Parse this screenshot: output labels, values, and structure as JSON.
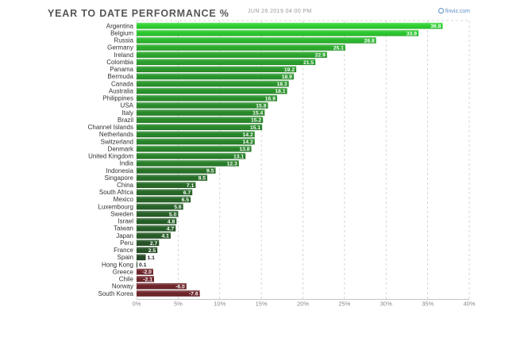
{
  "header": {
    "title": "YEAR TO DATE PERFORMANCE %",
    "timestamp": "JUN 26 2019 04:00 PM",
    "brand": "finviz.com",
    "brand_icon": "finviz-logo-icon"
  },
  "colors": {
    "positive_light": "#27d02a",
    "positive_dark": "#1e3a1e",
    "negative": "#6b1f24",
    "grid": "#cccccc",
    "label": "#333333",
    "tick": "#888888"
  },
  "chart_data": {
    "type": "bar",
    "orientation": "horizontal",
    "title": "YEAR TO DATE PERFORMANCE %",
    "categories": [
      "Argentina",
      "Belgium",
      "Russia",
      "Germany",
      "Ireland",
      "Colombia",
      "Panama",
      "Bermuda",
      "Canada",
      "Australia",
      "Philippines",
      "USA",
      "Italy",
      "Brazil",
      "Channel Islands",
      "Netherlands",
      "Switzerland",
      "Denmark",
      "United Kingdom",
      "India",
      "Indonesia",
      "Singapore",
      "China",
      "South Africa",
      "Mexico",
      "Luxembourg",
      "Sweden",
      "Israel",
      "Taiwan",
      "Japan",
      "Peru",
      "France",
      "Spain",
      "Hong Kong",
      "Greece",
      "Chile",
      "Norway",
      "South Korea"
    ],
    "values": [
      36.8,
      33.9,
      28.8,
      25.1,
      22.9,
      21.5,
      19.2,
      18.9,
      18.3,
      18.1,
      16.9,
      15.8,
      15.4,
      15.2,
      15.1,
      14.2,
      14.2,
      13.8,
      13.1,
      12.3,
      9.5,
      8.5,
      7.1,
      6.7,
      6.5,
      5.6,
      5.0,
      4.8,
      4.7,
      4.1,
      2.7,
      2.5,
      1.1,
      0.1,
      -2.0,
      -2.1,
      -6.0,
      -7.6
    ],
    "value_labels": [
      "36.8",
      "33.9",
      "28.8",
      "25.1",
      "22.9",
      "21.5",
      "19.2",
      "18.9",
      "18.3",
      "18.1",
      "16.9",
      "15.8",
      "15.4",
      "15.2",
      "15.1",
      "14.2",
      "14.2",
      "13.8",
      "13.1",
      "12.3",
      "9.5",
      "8.5",
      "7.1",
      "6.7",
      "6.5",
      "5.6",
      "5.0",
      "4.8",
      "4.7",
      "4.1",
      "2.7",
      "2.5",
      "1.1",
      "0.1",
      "-2.0",
      "-2.1",
      "-6.0",
      "-7.6"
    ],
    "x_ticks": [
      0,
      5,
      10,
      15,
      20,
      25,
      30,
      35,
      40
    ],
    "x_tick_labels": [
      "0%",
      "5%",
      "10%",
      "15%",
      "20%",
      "25%",
      "30%",
      "35%",
      "40%"
    ],
    "xlim": [
      0,
      40
    ],
    "grid": true
  }
}
